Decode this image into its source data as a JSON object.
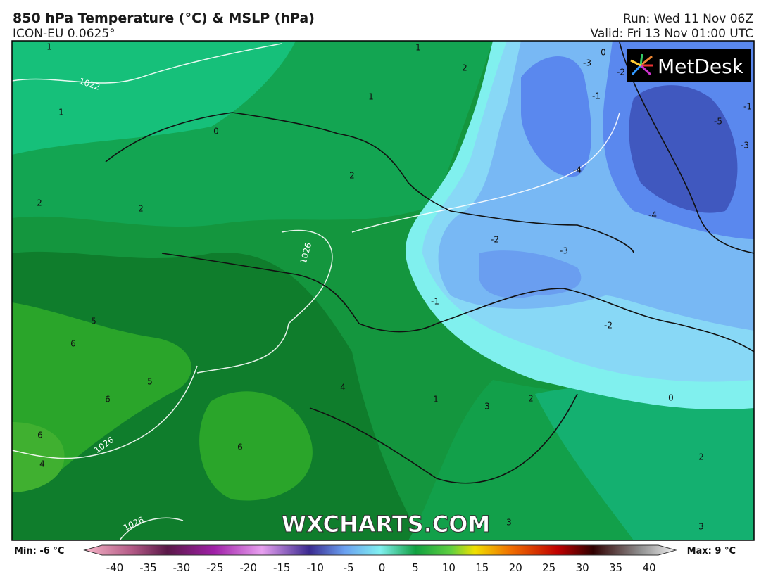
{
  "header": {
    "title": "850 hPa Temperature (°C) & MSLP (hPa)",
    "model": "ICON-EU 0.0625°",
    "run": "Run: Wed 11 Nov 06Z",
    "valid": "Valid: Fri 13 Nov 01:00 UTC"
  },
  "logo": "MetDesk",
  "watermark": "WXCHARTS.COM",
  "map": {
    "isotherm_labels": [
      "1",
      "1",
      "1",
      "1",
      "0",
      "2",
      "2",
      "2",
      "2",
      "0",
      "-3",
      "-2",
      "-1",
      "-5",
      "-3",
      "-1",
      "-4",
      "-4",
      "-2",
      "-3",
      "-1",
      "-2",
      "5",
      "6",
      "5",
      "6",
      "4",
      "6",
      "6",
      "4",
      "1",
      "3",
      "2",
      "0",
      "2",
      "3",
      "3"
    ],
    "isobar_labels": [
      "1022",
      "1026",
      "1026",
      "1026"
    ]
  },
  "legend": {
    "min": "Min: -6 °C",
    "max": "Max: 9 °C",
    "ticks": [
      -40,
      -35,
      -30,
      -25,
      -20,
      -15,
      -10,
      -5,
      0,
      5,
      10,
      15,
      20,
      25,
      30,
      35,
      40
    ]
  }
}
